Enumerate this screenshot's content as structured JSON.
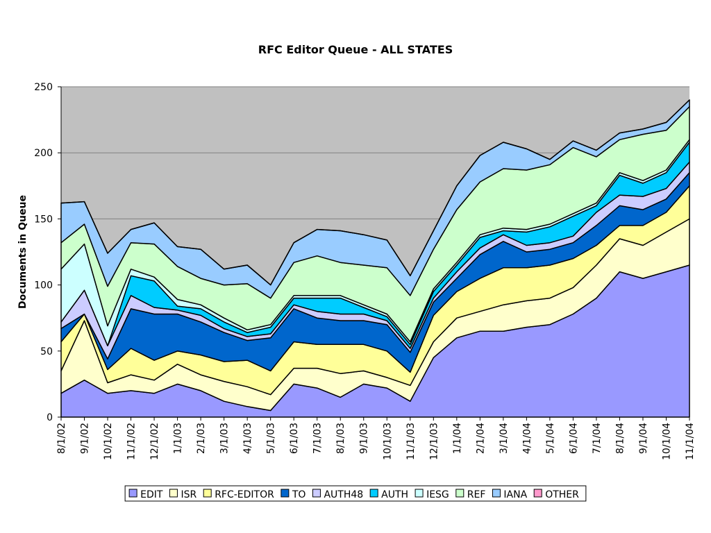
{
  "chart_data": {
    "type": "area",
    "stacked": true,
    "title": "RFC Editor Queue - ALL STATES",
    "xlabel": "",
    "ylabel": "Documents in Queue",
    "ylim": [
      0,
      250
    ],
    "yticks": [
      0,
      50,
      100,
      150,
      200,
      250
    ],
    "grid": true,
    "legend": "bottom",
    "plot_background": "#c0c0c0",
    "x": [
      "8/1/02",
      "9/1/02",
      "10/1/02",
      "11/1/02",
      "12/1/02",
      "1/1/03",
      "2/1/03",
      "3/1/03",
      "4/1/03",
      "5/1/03",
      "6/1/03",
      "7/1/03",
      "8/1/03",
      "9/1/03",
      "10/1/03",
      "11/1/03",
      "12/1/03",
      "1/1/04",
      "2/1/04",
      "3/1/04",
      "4/1/04",
      "5/1/04",
      "6/1/04",
      "7/1/04",
      "8/1/04",
      "9/1/04",
      "10/1/04",
      "11/1/04"
    ],
    "series": [
      {
        "name": "EDIT",
        "color": "#9999ff",
        "values": [
          18,
          28,
          18,
          20,
          18,
          25,
          20,
          12,
          8,
          5,
          25,
          22,
          15,
          25,
          22,
          12,
          45,
          60,
          65,
          65,
          68,
          70,
          78,
          90,
          110,
          105,
          110,
          115
        ]
      },
      {
        "name": "ISR",
        "color": "#ffffcc",
        "values": [
          17,
          45,
          8,
          12,
          10,
          15,
          12,
          15,
          15,
          12,
          12,
          15,
          18,
          10,
          8,
          12,
          12,
          15,
          15,
          20,
          20,
          20,
          20,
          25,
          25,
          25,
          30,
          35
        ]
      },
      {
        "name": "RFC-EDITOR",
        "color": "#ffff99",
        "values": [
          22,
          5,
          10,
          20,
          15,
          10,
          15,
          15,
          20,
          18,
          20,
          18,
          22,
          20,
          20,
          10,
          20,
          20,
          25,
          28,
          25,
          25,
          22,
          15,
          10,
          15,
          15,
          25
        ]
      },
      {
        "name": "TO",
        "color": "#0066cc",
        "values": [
          10,
          0,
          8,
          30,
          35,
          28,
          25,
          22,
          15,
          25,
          25,
          20,
          18,
          18,
          20,
          15,
          10,
          10,
          18,
          20,
          12,
          12,
          12,
          15,
          15,
          12,
          10,
          10
        ]
      },
      {
        "name": "AUTH48",
        "color": "#ccccff",
        "values": [
          5,
          18,
          10,
          10,
          5,
          3,
          5,
          3,
          3,
          3,
          3,
          5,
          5,
          5,
          3,
          3,
          3,
          5,
          5,
          5,
          5,
          5,
          5,
          10,
          8,
          10,
          8,
          8
        ]
      },
      {
        "name": "AUTH",
        "color": "#00ccff",
        "values": [
          0,
          0,
          0,
          15,
          20,
          3,
          5,
          5,
          3,
          5,
          5,
          10,
          12,
          5,
          3,
          3,
          5,
          5,
          8,
          3,
          10,
          12,
          15,
          5,
          15,
          10,
          12,
          15
        ]
      },
      {
        "name": "IESG",
        "color": "#ccffff",
        "values": [
          40,
          35,
          15,
          5,
          3,
          5,
          3,
          3,
          2,
          2,
          2,
          2,
          2,
          2,
          2,
          2,
          2,
          2,
          2,
          2,
          2,
          2,
          2,
          2,
          2,
          2,
          2,
          2
        ]
      },
      {
        "name": "REF",
        "color": "#ccffcc",
        "values": [
          20,
          15,
          30,
          20,
          25,
          25,
          20,
          25,
          35,
          20,
          25,
          30,
          25,
          30,
          35,
          35,
          30,
          40,
          40,
          45,
          45,
          45,
          50,
          35,
          25,
          35,
          30,
          25
        ]
      },
      {
        "name": "IANA",
        "color": "#99ccff",
        "values": [
          30,
          17,
          25,
          10,
          16,
          15,
          22,
          12,
          14,
          10,
          15,
          20,
          24,
          23,
          21,
          15,
          14,
          18,
          20,
          20,
          16,
          4,
          5,
          5,
          5,
          4,
          6,
          5
        ]
      },
      {
        "name": "OTHER",
        "color": "#ff99cc",
        "values": [
          0,
          0,
          0,
          0,
          0,
          0,
          0,
          0,
          0,
          0,
          0,
          0,
          0,
          0,
          0,
          0,
          0,
          0,
          0,
          0,
          0,
          0,
          0,
          0,
          0,
          0,
          0,
          0
        ]
      }
    ]
  }
}
